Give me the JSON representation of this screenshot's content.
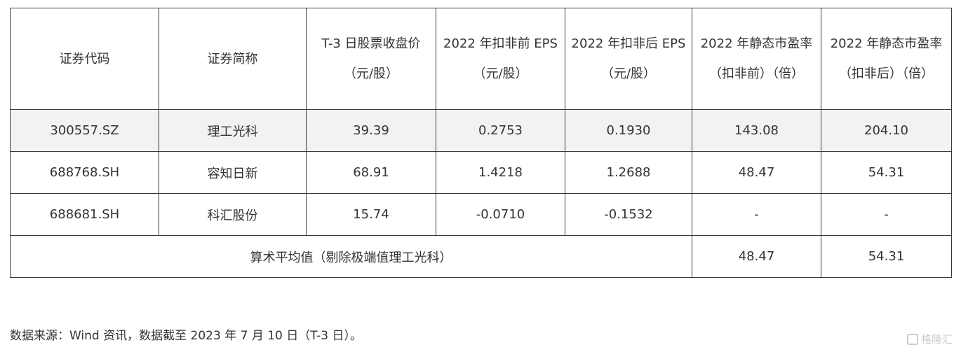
{
  "table": {
    "headers": [
      "证券代码",
      "证券简称",
      "T-3 日股票收盘价（元/股）",
      "2022 年扣非前 EPS（元/股）",
      "2022 年扣非后 EPS（元/股）",
      "2022 年静态市盈率（扣非前）（倍）",
      "2022 年静态市盈率（扣非后）（倍）"
    ],
    "rows": [
      [
        "300557.SZ",
        "理工光科",
        "39.39",
        "0.2753",
        "0.1930",
        "143.08",
        "204.10"
      ],
      [
        "688768.SH",
        "容知日新",
        "68.91",
        "1.4218",
        "1.2688",
        "48.47",
        "54.31"
      ],
      [
        "688681.SH",
        "科汇股份",
        "15.74",
        "-0.0710",
        "-0.1532",
        "-",
        "-"
      ]
    ],
    "average": {
      "label": "算术平均值（剔除极端值理工光科）",
      "pe_before": "48.47",
      "pe_after": "54.31"
    },
    "highlight_color": "#f2f2f2"
  },
  "footer": "数据来源：Wind 资讯，数据截至 2023 年 7 月 10 日（T-3 日）。",
  "watermark": "格隆汇"
}
